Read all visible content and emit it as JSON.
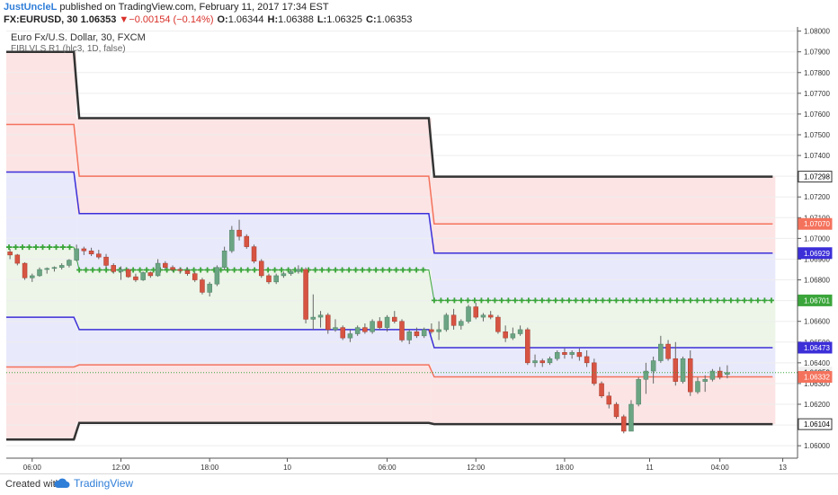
{
  "header": {
    "publisher": "JustUncleL",
    "published_text": "published on TradingView.com, February 11, 2017 17:34 EST",
    "symbol": "FX:EURUSD, 30",
    "last": "1.06353",
    "change": "−0.00154 (−0.14%)",
    "o_label": "O:",
    "o_value": "1.06344",
    "h_label": "H:",
    "h_value": "1.06388",
    "l_label": "L:",
    "l_value": "1.06325",
    "c_label": "C:",
    "c_value": "1.06353"
  },
  "legend": {
    "title": "Euro Fx/U.S. Dollar, 30, FXCM",
    "indicator": "FIBLVLS R1 (hlc3, 1D, false)"
  },
  "footer": {
    "created_with": "Created with",
    "brand": "TradingView"
  },
  "colors": {
    "up_candle": "#6ba583",
    "down_candle": "#d75442",
    "wick": "#666666",
    "level_dark": "#333333",
    "level_orange": "#f4725c",
    "level_blue": "#3c2fd8",
    "pivot_green": "#3aa53a",
    "zone_red": "#fce4e4",
    "zone_blue": "#e8e9fb",
    "zone_green": "#ecf5e8",
    "last_label": "#f0f0f0"
  },
  "chart_data": {
    "type": "candlestick",
    "title": "Euro Fx/U.S. Dollar, 30, FXCM",
    "ylim": [
      1.0594,
      1.0802
    ],
    "y_ticks": [
      "1.08000",
      "1.07900",
      "1.07800",
      "1.07700",
      "1.07600",
      "1.07500",
      "1.07400",
      "1.07300",
      "1.07200",
      "1.07100",
      "1.07000",
      "1.06900",
      "1.06800",
      "1.06700",
      "1.06600",
      "1.06500",
      "1.06400",
      "1.06300",
      "1.06200",
      "1.06100",
      "1.06000"
    ],
    "x_ticks": [
      "06:00",
      "12:00",
      "18:00",
      "10",
      "06:00",
      "12:00",
      "18:00",
      "11",
      "04:00",
      "13"
    ],
    "x_tick_positions": [
      3.5,
      15.5,
      27.5,
      38.0,
      51.5,
      63.5,
      75.5,
      87.0,
      96.5,
      105.0
    ],
    "x_range": [
      0,
      107
    ],
    "price_labels": [
      {
        "value": 1.07298,
        "text": "1.07298",
        "color": "#ffffff",
        "text_color": "#000000",
        "border": "#333333"
      },
      {
        "value": 1.0707,
        "text": "1.07070",
        "color": "#f4725c",
        "text_color": "#ffffff"
      },
      {
        "value": 1.06929,
        "text": "1.06929",
        "color": "#3c2fd8",
        "text_color": "#ffffff"
      },
      {
        "value": 1.06701,
        "text": "1.06701",
        "color": "#3aa53a",
        "text_color": "#ffffff"
      },
      {
        "value": 1.06473,
        "text": "1.06473",
        "color": "#3c2fd8",
        "text_color": "#ffffff"
      },
      {
        "value": 1.06353,
        "text": "1.06353",
        "color": "#f0f0f0",
        "text_color": "#000000"
      },
      {
        "value": 1.06332,
        "text": "1.06332",
        "color": "#f4725c",
        "text_color": "#ffffff"
      },
      {
        "value": 1.06104,
        "text": "1.06104",
        "color": "#ffffff",
        "text_color": "#000000",
        "border": "#333333"
      }
    ],
    "levels": {
      "segments": [
        {
          "x0": 0,
          "x1": 9.5,
          "r3": 1.079,
          "r2": 1.0755,
          "r1": 1.0732,
          "pivot": 1.06958,
          "s1": 1.0662,
          "s2": 1.0638,
          "s3": 1.0603
        },
        {
          "x0": 9.5,
          "x1": 57.5,
          "r3": 1.0758,
          "r2": 1.073,
          "r1": 1.0712,
          "pivot": 1.06848,
          "s1": 1.0656,
          "s2": 1.0639,
          "s3": 1.0611
        },
        {
          "x0": 57.5,
          "x1": 104,
          "r3": 1.07298,
          "r2": 1.0707,
          "r1": 1.06929,
          "pivot": 1.06701,
          "s1": 1.06473,
          "s2": 1.06332,
          "s3": 1.06104
        }
      ]
    },
    "candles": [
      [
        1.06935,
        1.0695,
        1.069,
        1.0692
      ],
      [
        1.0692,
        1.06925,
        1.0687,
        1.0688
      ],
      [
        1.0688,
        1.06885,
        1.068,
        1.0681
      ],
      [
        1.0681,
        1.0683,
        1.0679,
        1.0682
      ],
      [
        1.0682,
        1.0686,
        1.06815,
        1.0685
      ],
      [
        1.0685,
        1.0686,
        1.0683,
        1.06855
      ],
      [
        1.06855,
        1.06865,
        1.0684,
        1.0686
      ],
      [
        1.0686,
        1.0688,
        1.0685,
        1.0687
      ],
      [
        1.0687,
        1.069,
        1.0686,
        1.06895
      ],
      [
        1.06895,
        1.0697,
        1.0689,
        1.0695
      ],
      [
        1.0695,
        1.0696,
        1.0692,
        1.0694
      ],
      [
        1.0694,
        1.06955,
        1.06915,
        1.06925
      ],
      [
        1.06925,
        1.06945,
        1.069,
        1.0691
      ],
      [
        1.0691,
        1.06925,
        1.0686,
        1.0687
      ],
      [
        1.0687,
        1.0688,
        1.0683,
        1.0684
      ],
      [
        1.0684,
        1.06865,
        1.068,
        1.0685
      ],
      [
        1.0685,
        1.06855,
        1.0681,
        1.06815
      ],
      [
        1.06815,
        1.0683,
        1.0679,
        1.068
      ],
      [
        1.068,
        1.0684,
        1.06795,
        1.06835
      ],
      [
        1.06835,
        1.0684,
        1.0681,
        1.0682
      ],
      [
        1.0682,
        1.069,
        1.06815,
        1.0688
      ],
      [
        1.0688,
        1.0689,
        1.0685,
        1.0686
      ],
      [
        1.0686,
        1.0687,
        1.0684,
        1.0685
      ],
      [
        1.0685,
        1.0686,
        1.0683,
        1.06845
      ],
      [
        1.06845,
        1.0686,
        1.0682,
        1.0683
      ],
      [
        1.0683,
        1.0684,
        1.0679,
        1.068
      ],
      [
        1.068,
        1.0681,
        1.0673,
        1.0674
      ],
      [
        1.0674,
        1.0679,
        1.0672,
        1.0678
      ],
      [
        1.0678,
        1.0687,
        1.0677,
        1.0686
      ],
      [
        1.0686,
        1.0696,
        1.0685,
        1.0694
      ],
      [
        1.0694,
        1.0706,
        1.0693,
        1.0704
      ],
      [
        1.0704,
        1.0709,
        1.0699,
        1.0701
      ],
      [
        1.0701,
        1.0702,
        1.0695,
        1.0696
      ],
      [
        1.0696,
        1.0697,
        1.0688,
        1.0689
      ],
      [
        1.0689,
        1.069,
        1.0681,
        1.0682
      ],
      [
        1.0682,
        1.0683,
        1.0678,
        1.0679
      ],
      [
        1.0679,
        1.0683,
        1.0678,
        1.0682
      ],
      [
        1.0682,
        1.0684,
        1.0681,
        1.0683
      ],
      [
        1.0683,
        1.0685,
        1.0682,
        1.0684
      ],
      [
        1.0684,
        1.0687,
        1.0683,
        1.0685
      ],
      [
        1.0685,
        1.0686,
        1.0659,
        1.0661
      ],
      [
        1.0661,
        1.0673,
        1.0656,
        1.0662
      ],
      [
        1.0662,
        1.0665,
        1.0657,
        1.0663
      ],
      [
        1.0663,
        1.0664,
        1.0654,
        1.0656
      ],
      [
        1.0656,
        1.0661,
        1.0655,
        1.0657
      ],
      [
        1.0657,
        1.0658,
        1.0651,
        1.0652
      ],
      [
        1.0652,
        1.0656,
        1.065,
        1.0654
      ],
      [
        1.0654,
        1.0658,
        1.0653,
        1.0657
      ],
      [
        1.0657,
        1.0659,
        1.0654,
        1.0655
      ],
      [
        1.0655,
        1.0661,
        1.0654,
        1.066
      ],
      [
        1.066,
        1.0662,
        1.0656,
        1.0657
      ],
      [
        1.0657,
        1.0663,
        1.0655,
        1.0662
      ],
      [
        1.0662,
        1.0665,
        1.0659,
        1.066
      ],
      [
        1.066,
        1.0661,
        1.065,
        1.0651
      ],
      [
        1.0651,
        1.0656,
        1.0649,
        1.0655
      ],
      [
        1.0655,
        1.0657,
        1.0652,
        1.0653
      ],
      [
        1.0653,
        1.0657,
        1.0652,
        1.0656
      ],
      [
        1.0656,
        1.0659,
        1.0654,
        1.0655
      ],
      [
        1.0655,
        1.066,
        1.0651,
        1.0656
      ],
      [
        1.0656,
        1.0664,
        1.0655,
        1.0663
      ],
      [
        1.0663,
        1.0666,
        1.0656,
        1.0658
      ],
      [
        1.0658,
        1.0661,
        1.0656,
        1.066
      ],
      [
        1.066,
        1.0668,
        1.0659,
        1.0667
      ],
      [
        1.0667,
        1.0669,
        1.0661,
        1.0662
      ],
      [
        1.0662,
        1.0664,
        1.066,
        1.0663
      ],
      [
        1.0663,
        1.0665,
        1.0661,
        1.0662
      ],
      [
        1.0662,
        1.0663,
        1.0654,
        1.0655
      ],
      [
        1.0655,
        1.0658,
        1.065,
        1.0652
      ],
      [
        1.0652,
        1.0657,
        1.0651,
        1.0654
      ],
      [
        1.0654,
        1.0658,
        1.0653,
        1.0656
      ],
      [
        1.0656,
        1.0657,
        1.0639,
        1.064
      ],
      [
        1.064,
        1.0644,
        1.0638,
        1.0641
      ],
      [
        1.0641,
        1.0642,
        1.0638,
        1.064
      ],
      [
        1.064,
        1.0643,
        1.0639,
        1.0642
      ],
      [
        1.0642,
        1.0646,
        1.0641,
        1.0645
      ],
      [
        1.0645,
        1.0647,
        1.0642,
        1.0644
      ],
      [
        1.0644,
        1.0646,
        1.0642,
        1.0645
      ],
      [
        1.0645,
        1.0647,
        1.0641,
        1.0643
      ],
      [
        1.0643,
        1.0646,
        1.0638,
        1.064
      ],
      [
        1.064,
        1.0642,
        1.0629,
        1.063
      ],
      [
        1.063,
        1.0631,
        1.0623,
        1.0624
      ],
      [
        1.0624,
        1.0626,
        1.0618,
        1.062
      ],
      [
        1.062,
        1.0621,
        1.0613,
        1.0614
      ],
      [
        1.0614,
        1.0615,
        1.0606,
        1.0607
      ],
      [
        1.0607,
        1.0622,
        1.0607,
        1.062
      ],
      [
        1.062,
        1.0633,
        1.0619,
        1.0632
      ],
      [
        1.0632,
        1.064,
        1.0625,
        1.0636
      ],
      [
        1.0636,
        1.0643,
        1.063,
        1.0641
      ],
      [
        1.0641,
        1.0653,
        1.064,
        1.0649
      ],
      [
        1.0649,
        1.0651,
        1.0641,
        1.0642
      ],
      [
        1.0642,
        1.065,
        1.0629,
        1.0631
      ],
      [
        1.0631,
        1.0643,
        1.063,
        1.0642
      ],
      [
        1.0642,
        1.0646,
        1.0624,
        1.0626
      ],
      [
        1.0626,
        1.0633,
        1.0625,
        1.0631
      ],
      [
        1.0631,
        1.0634,
        1.0626,
        1.0632
      ],
      [
        1.0632,
        1.0637,
        1.0631,
        1.0636
      ],
      [
        1.0636,
        1.0638,
        1.0632,
        1.0633
      ],
      [
        1.06344,
        1.06388,
        1.06325,
        1.06353
      ]
    ]
  }
}
